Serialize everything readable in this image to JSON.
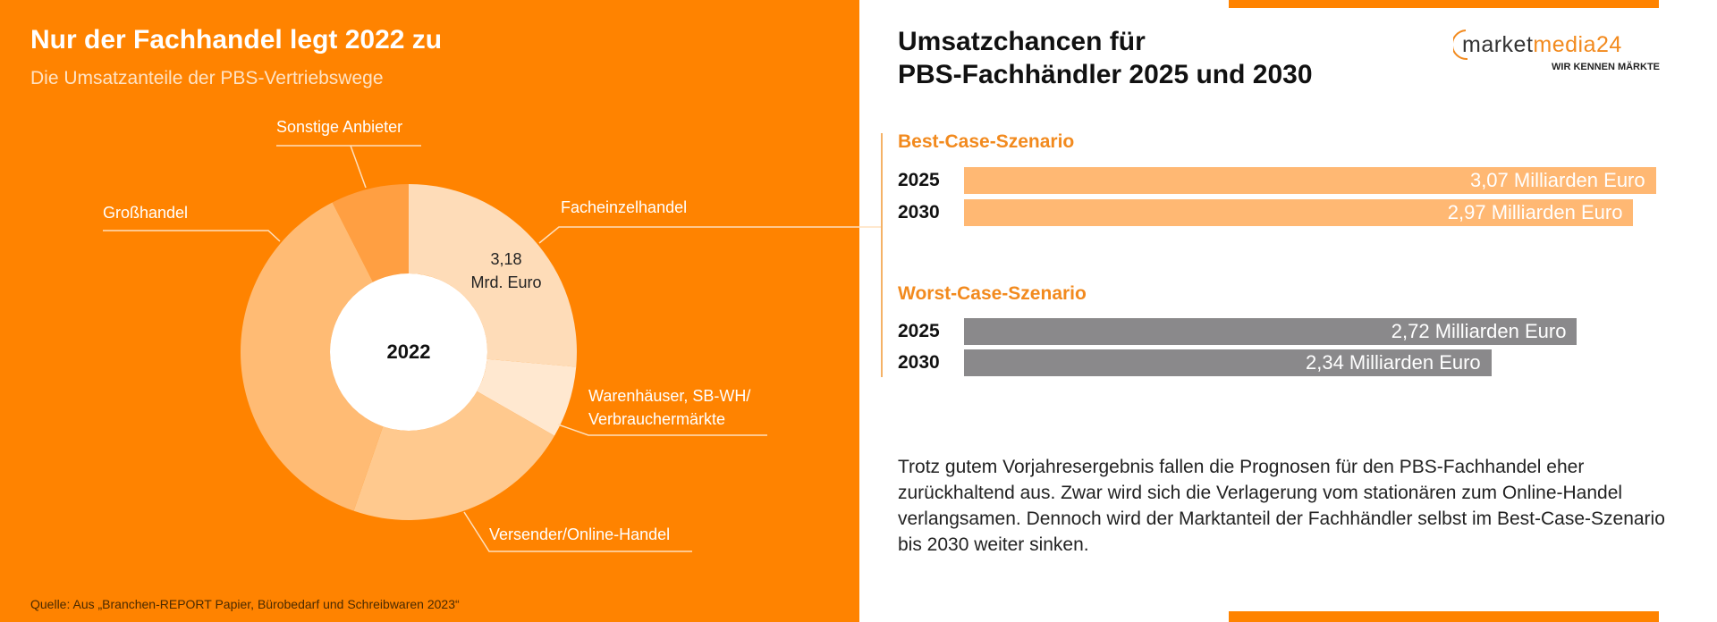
{
  "left": {
    "title": "Nur der Fachhandel legt 2022 zu",
    "subtitle": "Die Umsatzanteile der PBS-Vertriebswege",
    "source": "Quelle: Aus „Branchen-REPORT Papier, Bürobedarf und Schreibwaren 2023“"
  },
  "right": {
    "title_line1": "Umsatzchancen für",
    "title_line2": "PBS-Fachhändler 2025 und 2030",
    "logo_text": "marketmedia24",
    "logo_tagline": "WIR KENNEN MÄRKTE",
    "paragraph": "Trotz gutem Vorjahresergebnis fallen die Prognosen für den PBS-Fachhandel eher zurückhaltend aus. Zwar wird sich die Verlagerung vom stationären zum Online-Handel verlangsamen. Dennoch wird der Marktanteil der Fachhändler selbst im Best-Case-Szenario bis 2030 weiter sinken."
  },
  "colors": {
    "accent": "#ff8300",
    "scenario_heading": "#f28a1e",
    "best_bar": "#ffb873",
    "worst_bar": "#8a898b"
  },
  "chart_data": [
    {
      "type": "pie",
      "variant": "donut",
      "center_label": "2022",
      "unit": "share (%) estimated from slice angles",
      "slices": [
        {
          "name": "Facheinzelhandel",
          "value": 26.4,
          "annotation_line1": "3,18",
          "annotation_line2": "Mrd. Euro",
          "color": "#fedcb8"
        },
        {
          "name": "Warenhäuser, SB-WH/",
          "name_line2": "Verbrauchermärkte",
          "value": 6.9,
          "color": "#ffe8d0"
        },
        {
          "name": "Versender/Online-Handel",
          "value": 22.0,
          "color": "#ffc98e"
        },
        {
          "name": "Großhandel",
          "value": 37.2,
          "color": "#ffbb74"
        },
        {
          "name": "Sonstige Anbieter",
          "value": 7.5,
          "color": "#ff9f42"
        }
      ]
    },
    {
      "type": "bar",
      "orientation": "horizontal",
      "groups": [
        {
          "title": "Best-Case-Szenario",
          "color": "#ffb873",
          "bars": [
            {
              "category": "2025",
              "value": 3.07,
              "label": "3,07 Milliarden Euro"
            },
            {
              "category": "2030",
              "value": 2.97,
              "label": "2,97 Milliarden Euro"
            }
          ]
        },
        {
          "title": "Worst-Case-Szenario",
          "color": "#8a898b",
          "bars": [
            {
              "category": "2025",
              "value": 2.72,
              "label": "2,72 Milliarden Euro"
            },
            {
              "category": "2030",
              "value": 2.34,
              "label": "2,34 Milliarden Euro"
            }
          ]
        }
      ]
    }
  ]
}
